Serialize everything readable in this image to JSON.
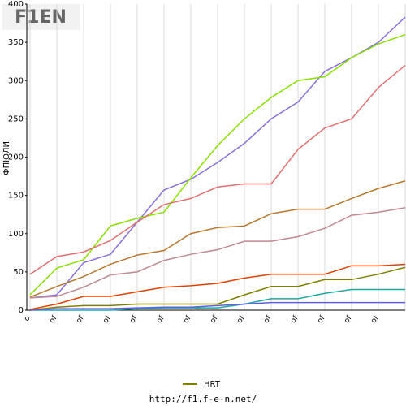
{
  "logo": "F1EN",
  "footer": "http://f1.f-e-n.net/",
  "chart_data": {
    "type": "line",
    "y_label": "ФПЮЛИ",
    "categories": [
      "o",
      "of",
      "of",
      "of",
      "of",
      "of",
      "of",
      "of",
      "of",
      "of",
      "of",
      "of",
      "of",
      "of",
      null
    ],
    "ylim": [
      0,
      400
    ],
    "yticks": [
      0,
      50,
      100,
      150,
      200,
      250,
      300,
      350,
      400
    ],
    "grid": "x",
    "legend": "bottom",
    "series": [
      {
        "color": "#8a70d8",
        "values": [
          16,
          20,
          62,
          73,
          115,
          157,
          171,
          193,
          218,
          250,
          272,
          312,
          330,
          350,
          383
        ]
      },
      {
        "color": "#88e000",
        "values": [
          20,
          55,
          66,
          110,
          120,
          128,
          173,
          215,
          250,
          278,
          300,
          305,
          330,
          348,
          360
        ]
      },
      {
        "color": "#e07070",
        "values": [
          47,
          70,
          76,
          91,
          115,
          138,
          146,
          161,
          165,
          165,
          210,
          238,
          250,
          291,
          320
        ]
      },
      {
        "color": "#b87830",
        "values": [
          17,
          31,
          44,
          60,
          72,
          78,
          100,
          108,
          110,
          126,
          132,
          132,
          146,
          159,
          169
        ]
      },
      {
        "color": "#c08890",
        "values": [
          16,
          18,
          30,
          46,
          50,
          65,
          73,
          79,
          90,
          90,
          96,
          107,
          124,
          128,
          134
        ]
      },
      {
        "color": "#e04000",
        "values": [
          1,
          8,
          18,
          18,
          24,
          30,
          32,
          35,
          42,
          47,
          47,
          47,
          58,
          58,
          60
        ]
      },
      {
        "name": "HRT",
        "color": "#808000",
        "values": [
          0,
          4,
          6,
          6,
          8,
          8,
          8,
          8,
          20,
          31,
          31,
          40,
          40,
          47,
          56
        ]
      },
      {
        "color": "#20a8a0",
        "values": [
          0,
          0,
          0,
          0,
          2,
          3,
          3,
          3,
          8,
          15,
          15,
          22,
          27,
          27,
          27
        ]
      },
      {
        "color": "#6060e0",
        "values": [
          0,
          2,
          2,
          2,
          3,
          4,
          4,
          6,
          8,
          10,
          10,
          10,
          10,
          10,
          10
        ]
      }
    ]
  }
}
